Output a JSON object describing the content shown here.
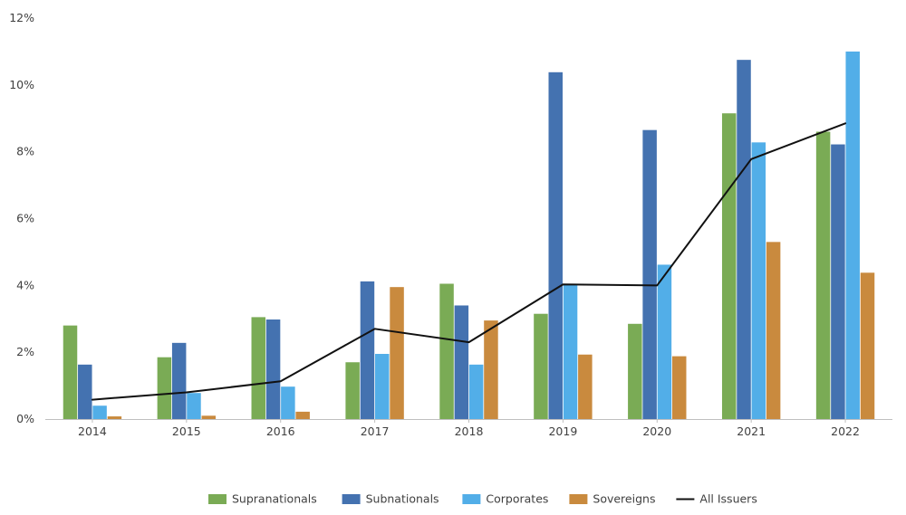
{
  "chart_data": {
    "type": "bar",
    "categories": [
      "2014",
      "2015",
      "2016",
      "2017",
      "2018",
      "2019",
      "2020",
      "2021",
      "2022"
    ],
    "series": [
      {
        "name": "Supranationals",
        "type": "bar",
        "color": "#7aab55",
        "values": [
          2.8,
          1.85,
          3.05,
          1.7,
          4.05,
          3.15,
          2.85,
          9.15,
          8.6
        ]
      },
      {
        "name": "Subnationals",
        "type": "bar",
        "color": "#4472b0",
        "values": [
          1.63,
          2.28,
          2.98,
          4.12,
          3.4,
          10.38,
          8.65,
          10.75,
          8.22
        ]
      },
      {
        "name": "Corporates",
        "type": "bar",
        "color": "#52aee8",
        "values": [
          0.4,
          0.78,
          0.97,
          1.95,
          1.63,
          4.05,
          4.62,
          8.28,
          11.0
        ]
      },
      {
        "name": "Sovereigns",
        "type": "bar",
        "color": "#c98a3e",
        "values": [
          0.08,
          0.1,
          0.22,
          3.95,
          2.95,
          1.93,
          1.88,
          5.3,
          4.38
        ]
      },
      {
        "name": "All Issuers",
        "type": "line",
        "color": "#111111",
        "values": [
          0.58,
          0.8,
          1.13,
          2.7,
          2.3,
          4.03,
          4.0,
          7.78,
          8.85
        ]
      }
    ],
    "y_ticks": [
      "0%",
      "2%",
      "4%",
      "6%",
      "8%",
      "10%",
      "12%"
    ],
    "ylim": [
      0,
      12
    ],
    "legend_position": "bottom-center",
    "grid": false
  }
}
